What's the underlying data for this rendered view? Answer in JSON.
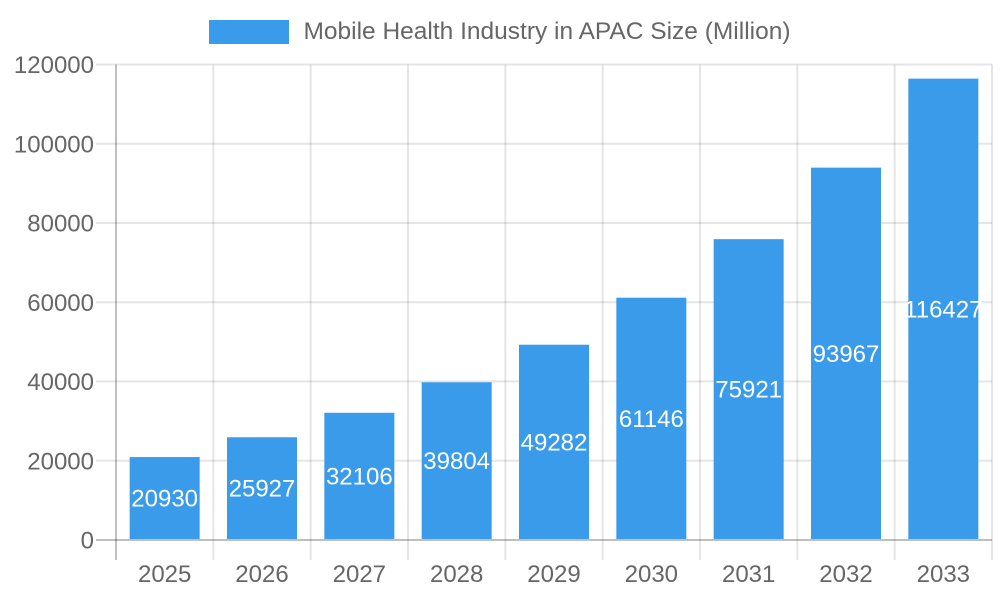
{
  "chart_data": {
    "type": "bar",
    "title": "Mobile Health Industry in APAC Size (Million)",
    "categories": [
      "2025",
      "2026",
      "2027",
      "2028",
      "2029",
      "2030",
      "2031",
      "2032",
      "2033"
    ],
    "series": [
      {
        "name": "Mobile Health Industry in APAC Size (Million)",
        "values": [
          20930,
          25927,
          32106,
          39804,
          49282,
          61146,
          75921,
          93967,
          116427
        ],
        "color": "#3A9BEA"
      }
    ],
    "xlabel": "",
    "ylabel": "",
    "ylim": [
      0,
      120000
    ],
    "ytick_step": 20000,
    "ytick_labels": [
      "0",
      "20000",
      "40000",
      "60000",
      "80000",
      "100000",
      "120000"
    ],
    "grid": true,
    "legend": {
      "position": "top",
      "entries": [
        {
          "label": "Mobile Health Industry in APAC Size (Million)",
          "color": "#3A9BEA"
        }
      ]
    },
    "value_labels": {
      "show": true,
      "position": "center",
      "color": "#ffffff"
    },
    "colors": {
      "background": "#ffffff",
      "bar": "#3A9BEA",
      "grid_line": "rgba(0,0,0,0.1)",
      "zero_line": "rgba(0,0,0,0.25)",
      "axis_text": "#666666",
      "legend_text": "#666666",
      "value_label_text": "#ffffff"
    }
  }
}
